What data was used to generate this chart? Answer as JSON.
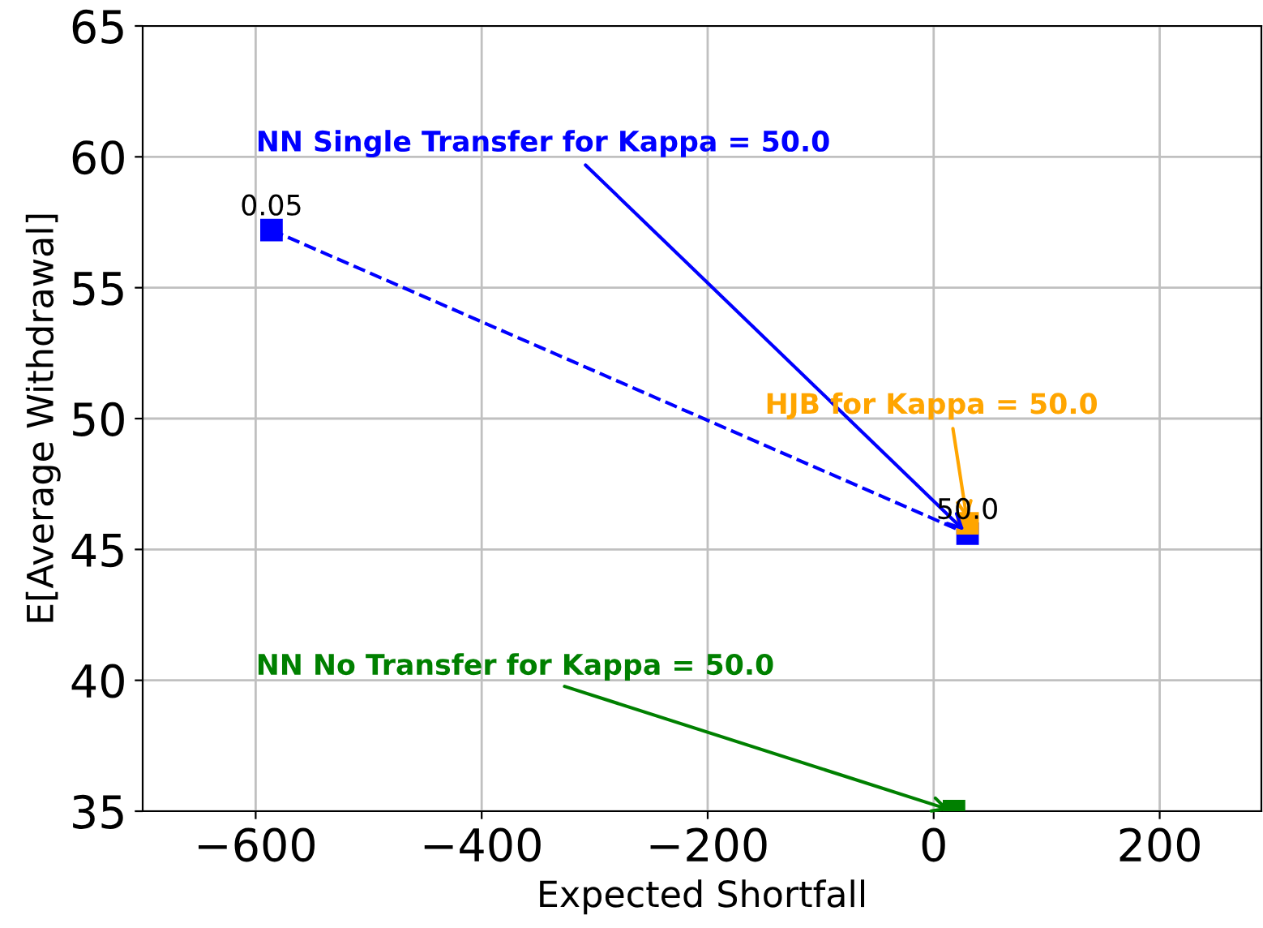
{
  "chart_data": {
    "type": "line",
    "xlabel": "Expected Shortfall",
    "ylabel": "E[Average Withdrawal]",
    "xlim": [
      -700,
      290
    ],
    "xticks": [
      {
        "value": -600,
        "label": "−600"
      },
      {
        "value": -400,
        "label": "−400"
      },
      {
        "value": -200,
        "label": "−200"
      },
      0,
      200
    ],
    "ylim": [
      35,
      65
    ],
    "yticks": [
      35,
      40,
      45,
      50,
      55,
      60,
      65
    ],
    "grid": true,
    "marker": "square",
    "series": [
      {
        "color": "#0000ff",
        "line_style": "dashed",
        "x": [
          -586,
          30
        ],
        "values": [
          57.2,
          45.6
        ]
      },
      {
        "type": "scatter",
        "color": "#ffa500",
        "x": [
          30
        ],
        "values": [
          46.0
        ]
      },
      {
        "type": "scatter",
        "color": "#008000",
        "x": [
          18
        ],
        "values": [
          35.0
        ]
      }
    ],
    "annotations": [
      {
        "text": "NN Single Transfer for Kappa = 50.0",
        "x": 30,
        "y": 45.6
      },
      {
        "text": "HJB for Kappa = 50.0",
        "x": 30,
        "y": 46.0
      },
      {
        "text": "NN No Transfer for Kappa = 50.0",
        "x": 18,
        "y": 35.0
      },
      {
        "text": "0.05",
        "x": -586,
        "y": 57.2
      },
      {
        "text": "50.0",
        "x": 30,
        "y": 45.6
      }
    ]
  }
}
